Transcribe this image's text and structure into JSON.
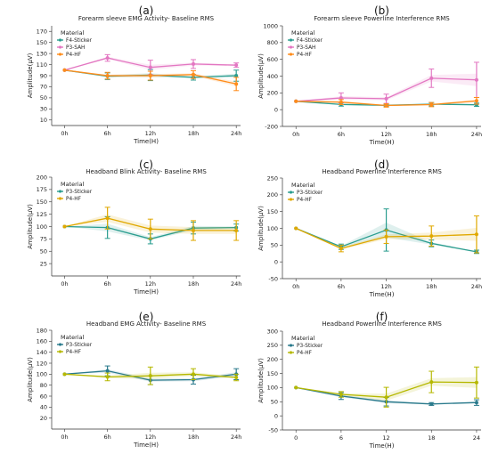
{
  "panels": [
    {
      "panel_label": "(a)",
      "title": "Forearm sleeve EMG Activity- Baseline RMS",
      "ylabel": "Amplitude(µV)",
      "xlabel": "Time(H)",
      "categories": [
        "0h",
        "6h",
        "12h",
        "18h",
        "24h"
      ],
      "yticks": [
        10,
        30,
        50,
        70,
        90,
        110,
        130,
        150,
        170
      ],
      "ylim": [
        0,
        180
      ],
      "legend_title": "Material",
      "series": [
        {
          "name": "F4-Sticker",
          "color": "#2a9d8f",
          "values": [
            100,
            89,
            91,
            87,
            90
          ],
          "err": [
            0,
            6,
            10,
            5,
            10
          ]
        },
        {
          "name": "P3-SAH",
          "color": "#e377c2",
          "values": [
            100,
            122,
            105,
            111,
            109
          ],
          "err": [
            0,
            6,
            13,
            8,
            4
          ]
        },
        {
          "name": "P4-HF",
          "color": "#ff8c1a",
          "values": [
            100,
            90,
            90,
            92,
            75
          ],
          "err": [
            0,
            6,
            8,
            7,
            12
          ]
        }
      ]
    },
    {
      "panel_label": "(b)",
      "title": "Forearm sleeve Powerline Interference RMS",
      "ylabel": "Amplitude(µV)",
      "xlabel": "Time(H)",
      "categories": [
        "0h",
        "6h",
        "12h",
        "18h",
        "24h"
      ],
      "yticks": [
        -200,
        0,
        200,
        400,
        600,
        800,
        1000
      ],
      "ylim": [
        -200,
        1000
      ],
      "legend_title": "Material",
      "series": [
        {
          "name": "F4-Sticker",
          "color": "#2a9d8f",
          "values": [
            100,
            62,
            52,
            65,
            58
          ],
          "err": [
            0,
            20,
            15,
            20,
            20
          ]
        },
        {
          "name": "P3-SAH",
          "color": "#e377c2",
          "values": [
            100,
            140,
            130,
            375,
            355
          ],
          "err": [
            0,
            60,
            55,
            110,
            210
          ]
        },
        {
          "name": "P4-HF",
          "color": "#ff8c1a",
          "values": [
            100,
            90,
            50,
            60,
            105
          ],
          "err": [
            0,
            30,
            20,
            25,
            40
          ]
        }
      ]
    },
    {
      "panel_label": "(c)",
      "title": "Headband Blink Activity- Baseline RMS",
      "ylabel": "Amplitude(µV)",
      "xlabel": "Time(H)",
      "categories": [
        "0h",
        "6h",
        "12h",
        "18h",
        "24h"
      ],
      "yticks": [
        25,
        50,
        75,
        100,
        125,
        150,
        175,
        200
      ],
      "ylim": [
        0,
        200
      ],
      "legend_title": "Material",
      "series": [
        {
          "name": "P3-Sticker",
          "color": "#2a9d8f",
          "values": [
            100,
            98,
            75,
            97,
            98
          ],
          "err": [
            0,
            22,
            10,
            12,
            7
          ]
        },
        {
          "name": "P4-HF",
          "color": "#e0a800",
          "values": [
            100,
            117,
            95,
            92,
            92
          ],
          "err": [
            0,
            22,
            20,
            20,
            20
          ]
        }
      ]
    },
    {
      "panel_label": "(d)",
      "title": "Headband Powerline Interference RMS",
      "ylabel": "Amplitude(µV)",
      "xlabel": "Time(H)",
      "categories": [
        "0h",
        "6h",
        "12h",
        "18h",
        "24h"
      ],
      "yticks": [
        -50,
        0,
        50,
        100,
        150,
        200,
        250
      ],
      "ylim": [
        -50,
        250
      ],
      "legend_title": "Material",
      "series": [
        {
          "name": "P3-Sticker",
          "color": "#2a9d8f",
          "values": [
            100,
            45,
            95,
            55,
            30
          ],
          "err": [
            0,
            8,
            63,
            10,
            5
          ]
        },
        {
          "name": "P4-HF",
          "color": "#e0a800",
          "values": [
            100,
            40,
            75,
            77,
            82
          ],
          "err": [
            0,
            10,
            20,
            30,
            55
          ]
        }
      ]
    },
    {
      "panel_label": "(e)",
      "title": "Headband EMG Activity- Baseline RMS",
      "ylabel": "Amplitude(µV)",
      "xlabel": "Time(H)",
      "categories": [
        "0h",
        "6h",
        "12h",
        "18h",
        "24h"
      ],
      "yticks": [
        20,
        40,
        60,
        80,
        100,
        120,
        140,
        160,
        180
      ],
      "ylim": [
        0,
        180
      ],
      "legend_title": "Material",
      "series": [
        {
          "name": "P3-Sticker",
          "color": "#2a7a8c",
          "values": [
            100,
            106,
            89,
            90,
            100
          ],
          "err": [
            0,
            9,
            8,
            8,
            10
          ]
        },
        {
          "name": "P4-HF",
          "color": "#b5b800",
          "values": [
            100,
            95,
            97,
            100,
            94
          ],
          "err": [
            0,
            7,
            16,
            10,
            6
          ]
        }
      ]
    },
    {
      "panel_label": "(f)",
      "title": "Headband Powerline Interference RMS",
      "ylabel": "Amplitude(µV)",
      "xlabel": "Time(H)",
      "categories": [
        "0",
        "6",
        "12",
        "18",
        "24"
      ],
      "yticks": [
        -50,
        0,
        50,
        100,
        150,
        200,
        250,
        300
      ],
      "ylim": [
        -50,
        300
      ],
      "legend_title": "Material",
      "series": [
        {
          "name": "P3-Sticker",
          "color": "#2a7a8c",
          "values": [
            100,
            70,
            50,
            42,
            47
          ],
          "err": [
            0,
            12,
            15,
            5,
            10
          ]
        },
        {
          "name": "P4-HF",
          "color": "#b5b800",
          "values": [
            100,
            76,
            66,
            120,
            118
          ],
          "err": [
            0,
            10,
            35,
            38,
            55
          ]
        }
      ]
    }
  ],
  "chart_data": [
    {
      "type": "line",
      "title": "Forearm sleeve EMG Activity- Baseline RMS",
      "xlabel": "Time(H)",
      "ylabel": "Amplitude(µV)",
      "categories": [
        "0h",
        "6h",
        "12h",
        "18h",
        "24h"
      ],
      "ylim": [
        0,
        180
      ],
      "series": [
        {
          "name": "F4-Sticker",
          "values": [
            100,
            89,
            91,
            87,
            90
          ]
        },
        {
          "name": "P3-SAH",
          "values": [
            100,
            122,
            105,
            111,
            109
          ]
        },
        {
          "name": "P4-HF",
          "values": [
            100,
            90,
            90,
            92,
            75
          ]
        }
      ]
    },
    {
      "type": "line",
      "title": "Forearm sleeve Powerline Interference RMS",
      "xlabel": "Time(H)",
      "ylabel": "Amplitude(µV)",
      "categories": [
        "0h",
        "6h",
        "12h",
        "18h",
        "24h"
      ],
      "ylim": [
        -200,
        1000
      ],
      "series": [
        {
          "name": "F4-Sticker",
          "values": [
            100,
            62,
            52,
            65,
            58
          ]
        },
        {
          "name": "P3-SAH",
          "values": [
            100,
            140,
            130,
            375,
            355
          ]
        },
        {
          "name": "P4-HF",
          "values": [
            100,
            90,
            50,
            60,
            105
          ]
        }
      ]
    },
    {
      "type": "line",
      "title": "Headband Blink Activity- Baseline RMS",
      "xlabel": "Time(H)",
      "ylabel": "Amplitude(µV)",
      "categories": [
        "0h",
        "6h",
        "12h",
        "18h",
        "24h"
      ],
      "ylim": [
        0,
        200
      ],
      "series": [
        {
          "name": "P3-Sticker",
          "values": [
            100,
            98,
            75,
            97,
            98
          ]
        },
        {
          "name": "P4-HF",
          "values": [
            100,
            117,
            95,
            92,
            92
          ]
        }
      ]
    },
    {
      "type": "line",
      "title": "Headband Powerline Interference RMS",
      "xlabel": "Time(H)",
      "ylabel": "Amplitude(µV)",
      "categories": [
        "0h",
        "6h",
        "12h",
        "18h",
        "24h"
      ],
      "ylim": [
        -50,
        250
      ],
      "series": [
        {
          "name": "P3-Sticker",
          "values": [
            100,
            45,
            95,
            55,
            30
          ]
        },
        {
          "name": "P4-HF",
          "values": [
            100,
            40,
            75,
            77,
            82
          ]
        }
      ]
    },
    {
      "type": "line",
      "title": "Headband EMG Activity- Baseline RMS",
      "xlabel": "Time(H)",
      "ylabel": "Amplitude(µV)",
      "categories": [
        "0h",
        "6h",
        "12h",
        "18h",
        "24h"
      ],
      "ylim": [
        0,
        180
      ],
      "series": [
        {
          "name": "P3-Sticker",
          "values": [
            100,
            106,
            89,
            90,
            100
          ]
        },
        {
          "name": "P4-HF",
          "values": [
            100,
            95,
            97,
            100,
            94
          ]
        }
      ]
    },
    {
      "type": "line",
      "title": "Headband Powerline Interference RMS",
      "xlabel": "Time(H)",
      "ylabel": "Amplitude(µV)",
      "categories": [
        "0",
        "6",
        "12",
        "18",
        "24"
      ],
      "ylim": [
        -50,
        300
      ],
      "series": [
        {
          "name": "P3-Sticker",
          "values": [
            100,
            70,
            50,
            42,
            47
          ]
        },
        {
          "name": "P4-HF",
          "values": [
            100,
            76,
            66,
            120,
            118
          ]
        }
      ]
    }
  ]
}
